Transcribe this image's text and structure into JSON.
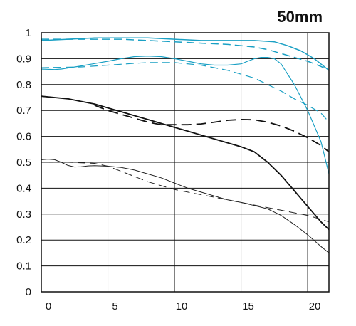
{
  "chart_data": {
    "type": "line",
    "title": "50mm",
    "xlabel": "",
    "ylabel": "",
    "xlim": [
      0,
      21.6
    ],
    "ylim": [
      0,
      1
    ],
    "grid": true,
    "legend": "none",
    "x_ticks": [
      0,
      5,
      10,
      15,
      20
    ],
    "x_tick_labels": [
      "0",
      "5",
      "10",
      "15",
      "20"
    ],
    "y_ticks": [
      0,
      0.1,
      0.2,
      0.3,
      0.4,
      0.5,
      0.6,
      0.7,
      0.8,
      0.9,
      1
    ],
    "y_tick_labels": [
      "0",
      "0.1",
      "0.2",
      "0.3",
      "0.4",
      "0.5",
      "0.6",
      "0.7",
      "0.8",
      "0.9",
      "1"
    ],
    "series": [
      {
        "color": "#1aa0c4",
        "dash": false,
        "width": 1.5,
        "points": [
          [
            0,
            0.97
          ],
          [
            2,
            0.975
          ],
          [
            4,
            0.98
          ],
          [
            6,
            0.98
          ],
          [
            8,
            0.98
          ],
          [
            10,
            0.975
          ],
          [
            12,
            0.97
          ],
          [
            14,
            0.97
          ],
          [
            16,
            0.97
          ],
          [
            17.5,
            0.965
          ],
          [
            18.5,
            0.95
          ],
          [
            19.5,
            0.93
          ],
          [
            20.5,
            0.9
          ],
          [
            21.6,
            0.855
          ]
        ]
      },
      {
        "color": "#1aa0c4",
        "dash": true,
        "width": 1.5,
        "points": [
          [
            0,
            0.975
          ],
          [
            2,
            0.975
          ],
          [
            4,
            0.975
          ],
          [
            6,
            0.975
          ],
          [
            8,
            0.97
          ],
          [
            10,
            0.965
          ],
          [
            12,
            0.96
          ],
          [
            14,
            0.955
          ],
          [
            16,
            0.945
          ],
          [
            17,
            0.935
          ],
          [
            18,
            0.92
          ],
          [
            19,
            0.905
          ],
          [
            20,
            0.89
          ],
          [
            21,
            0.87
          ],
          [
            21.6,
            0.855
          ]
        ]
      },
      {
        "color": "#1aa0c4",
        "dash": false,
        "width": 1.2,
        "points": [
          [
            0,
            0.86
          ],
          [
            1,
            0.858
          ],
          [
            1.5,
            0.86
          ],
          [
            3,
            0.872
          ],
          [
            5,
            0.89
          ],
          [
            6,
            0.9
          ],
          [
            7,
            0.908
          ],
          [
            8,
            0.91
          ],
          [
            9,
            0.908
          ],
          [
            10,
            0.9
          ],
          [
            11,
            0.89
          ],
          [
            12,
            0.88
          ],
          [
            13,
            0.875
          ],
          [
            14,
            0.875
          ],
          [
            15,
            0.88
          ],
          [
            15.5,
            0.89
          ],
          [
            16,
            0.9
          ],
          [
            16.5,
            0.905
          ],
          [
            17,
            0.905
          ],
          [
            17.5,
            0.9
          ],
          [
            18,
            0.88
          ],
          [
            19,
            0.8
          ],
          [
            20,
            0.7
          ],
          [
            21,
            0.58
          ],
          [
            21.6,
            0.455
          ]
        ]
      },
      {
        "color": "#1aa0c4",
        "dash": true,
        "width": 1.2,
        "points": [
          [
            0,
            0.865
          ],
          [
            3,
            0.868
          ],
          [
            5,
            0.875
          ],
          [
            7,
            0.882
          ],
          [
            8,
            0.885
          ],
          [
            10,
            0.885
          ],
          [
            12,
            0.875
          ],
          [
            13,
            0.865
          ],
          [
            14,
            0.855
          ],
          [
            15,
            0.84
          ],
          [
            16,
            0.825
          ],
          [
            17,
            0.8
          ],
          [
            18,
            0.775
          ],
          [
            19,
            0.745
          ],
          [
            20,
            0.72
          ],
          [
            21,
            0.69
          ],
          [
            21.6,
            0.655
          ]
        ]
      },
      {
        "color": "#111111",
        "dash": false,
        "width": 1.8,
        "points": [
          [
            0,
            0.755
          ],
          [
            1,
            0.75
          ],
          [
            2,
            0.745
          ],
          [
            3,
            0.735
          ],
          [
            4,
            0.725
          ],
          [
            5,
            0.71
          ],
          [
            6,
            0.695
          ],
          [
            7,
            0.68
          ],
          [
            8,
            0.665
          ],
          [
            9,
            0.65
          ],
          [
            10,
            0.635
          ],
          [
            11,
            0.62
          ],
          [
            12,
            0.605
          ],
          [
            13,
            0.59
          ],
          [
            14,
            0.575
          ],
          [
            15,
            0.56
          ],
          [
            16,
            0.54
          ],
          [
            17,
            0.5
          ],
          [
            18,
            0.45
          ],
          [
            19,
            0.39
          ],
          [
            20,
            0.33
          ],
          [
            21,
            0.27
          ],
          [
            21.6,
            0.24
          ]
        ]
      },
      {
        "color": "#111111",
        "dash": true,
        "width": 1.8,
        "points": [
          [
            4,
            0.72
          ],
          [
            5,
            0.7
          ],
          [
            6,
            0.685
          ],
          [
            7,
            0.67
          ],
          [
            8,
            0.655
          ],
          [
            9,
            0.645
          ],
          [
            10,
            0.645
          ],
          [
            11,
            0.645
          ],
          [
            12,
            0.648
          ],
          [
            13,
            0.655
          ],
          [
            14,
            0.662
          ],
          [
            15,
            0.665
          ],
          [
            16,
            0.664
          ],
          [
            17,
            0.655
          ],
          [
            18,
            0.64
          ],
          [
            19,
            0.62
          ],
          [
            20,
            0.595
          ],
          [
            21,
            0.565
          ],
          [
            21.6,
            0.54
          ]
        ]
      },
      {
        "color": "#222222",
        "dash": false,
        "width": 1.0,
        "points": [
          [
            0,
            0.51
          ],
          [
            0.5,
            0.512
          ],
          [
            1,
            0.51
          ],
          [
            1.5,
            0.5
          ],
          [
            2,
            0.488
          ],
          [
            2.5,
            0.482
          ],
          [
            3,
            0.483
          ],
          [
            3.5,
            0.486
          ],
          [
            4,
            0.487
          ],
          [
            5,
            0.485
          ],
          [
            6,
            0.48
          ],
          [
            7,
            0.47
          ],
          [
            8,
            0.455
          ],
          [
            9,
            0.44
          ],
          [
            10,
            0.42
          ],
          [
            11,
            0.4
          ],
          [
            12,
            0.385
          ],
          [
            13,
            0.37
          ],
          [
            14,
            0.355
          ],
          [
            15,
            0.345
          ],
          [
            16,
            0.333
          ],
          [
            17,
            0.32
          ],
          [
            18,
            0.295
          ],
          [
            19,
            0.26
          ],
          [
            20,
            0.22
          ],
          [
            21,
            0.175
          ],
          [
            21.6,
            0.15
          ]
        ]
      },
      {
        "color": "#222222",
        "dash": true,
        "width": 1.0,
        "points": [
          [
            0,
            0.5
          ],
          [
            1,
            0.5
          ],
          [
            2,
            0.5
          ],
          [
            3,
            0.498
          ],
          [
            4,
            0.496
          ],
          [
            5,
            0.485
          ],
          [
            6,
            0.465
          ],
          [
            7,
            0.445
          ],
          [
            8,
            0.425
          ],
          [
            9,
            0.41
          ],
          [
            10,
            0.395
          ],
          [
            11,
            0.385
          ],
          [
            12,
            0.375
          ],
          [
            13,
            0.365
          ],
          [
            14,
            0.355
          ],
          [
            15,
            0.345
          ],
          [
            16,
            0.335
          ],
          [
            17,
            0.325
          ],
          [
            18,
            0.315
          ],
          [
            19,
            0.305
          ],
          [
            20,
            0.295
          ],
          [
            21,
            0.28
          ],
          [
            21.6,
            0.27
          ]
        ]
      }
    ]
  }
}
